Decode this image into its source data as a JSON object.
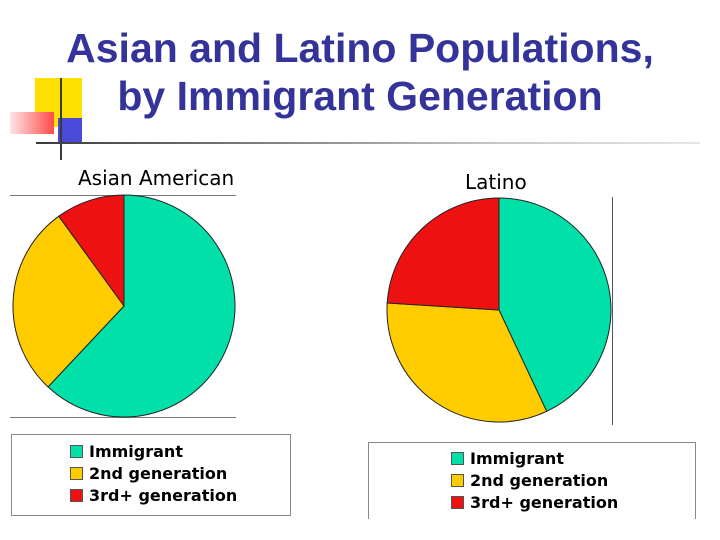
{
  "title": {
    "line1": "Asian and Latino Populations,",
    "line2": "by Immigrant Generation"
  },
  "colors": {
    "title": "#33339a",
    "immigrant": "#00e0a8",
    "second_generation": "#ffcc00",
    "third_plus_generation": "#ee1111",
    "deco_yellow": "#ffe000",
    "deco_red": "#ff4a4a",
    "deco_blue": "#4a4ad8"
  },
  "chart_data": [
    {
      "type": "pie",
      "title": "Asian American",
      "categories": [
        "Immigrant",
        "2nd generation",
        "3rd+ generation"
      ],
      "values": [
        62,
        28,
        10
      ],
      "colors": [
        "#00e0a8",
        "#ffcc00",
        "#ee1111"
      ],
      "legend": [
        "Immigrant",
        "2nd generation",
        "3rd+ generation"
      ],
      "legend_position": "bottom"
    },
    {
      "type": "pie",
      "title": "Latino",
      "categories": [
        "Immigrant",
        "2nd generation",
        "3rd+ generation"
      ],
      "values": [
        43,
        33,
        24
      ],
      "colors": [
        "#00e0a8",
        "#ffcc00",
        "#ee1111"
      ],
      "legend": [
        "Immigrant",
        "2nd generation",
        "3rd+ generation"
      ],
      "legend_position": "bottom"
    }
  ]
}
